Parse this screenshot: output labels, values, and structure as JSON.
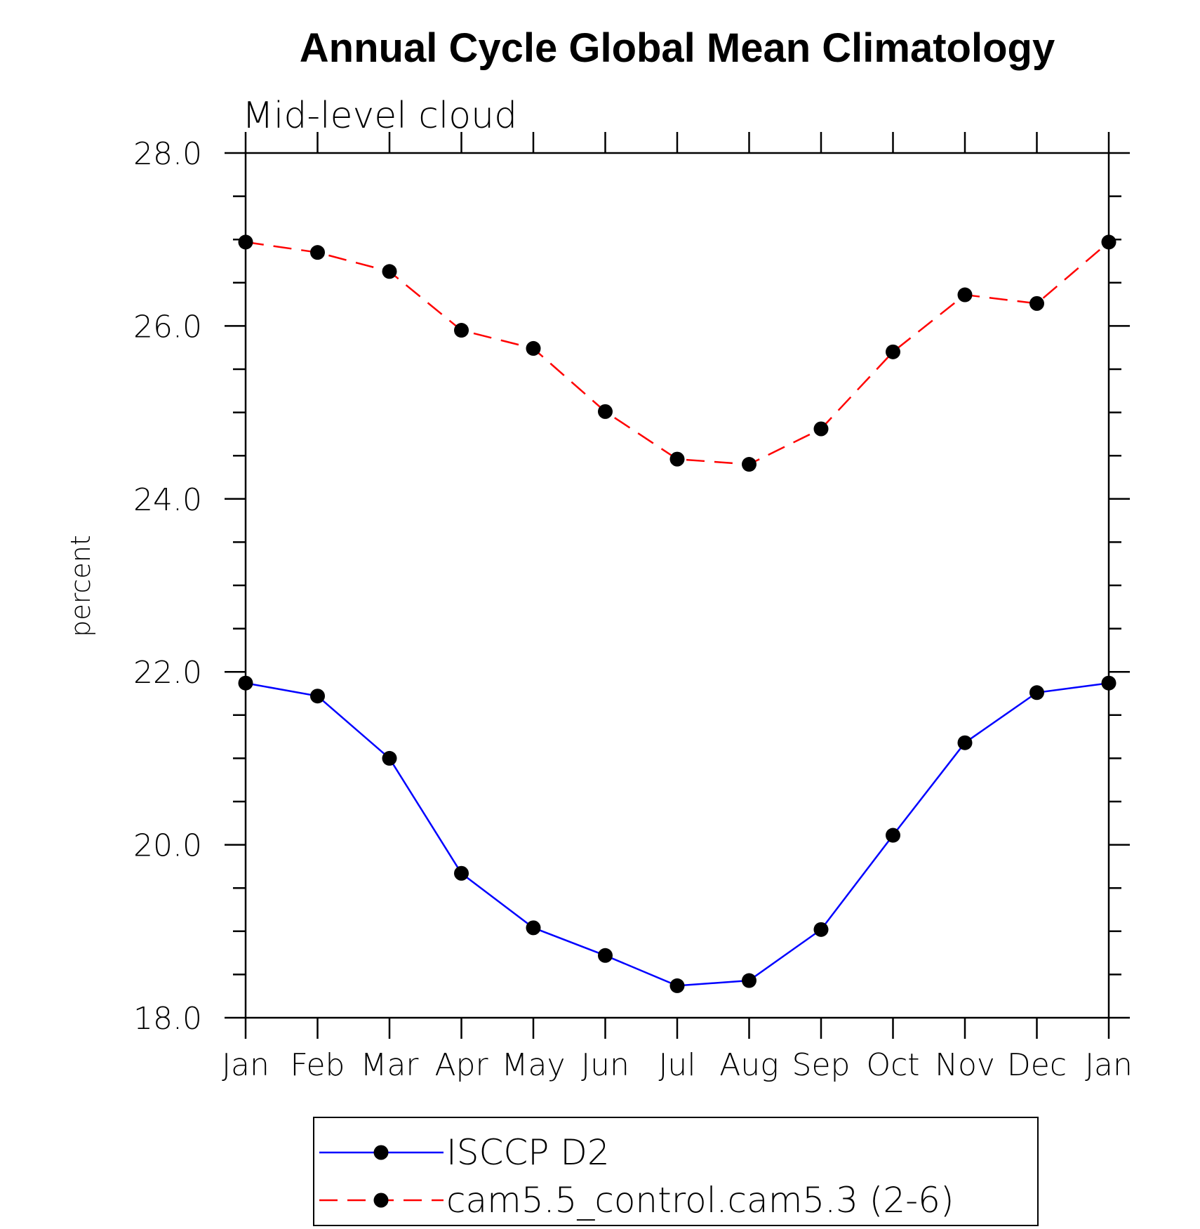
{
  "chart_data": {
    "type": "line",
    "title": "Annual Cycle Global Mean Climatology",
    "subtitle": "Mid-level cloud",
    "ylabel": "percent",
    "xlabel": "",
    "ylim": [
      18.0,
      28.0
    ],
    "yticks": [
      "18.0",
      "20.0",
      "22.0",
      "24.0",
      "26.0",
      "28.0"
    ],
    "categories": [
      "Jan",
      "Feb",
      "Mar",
      "Apr",
      "May",
      "Jun",
      "Jul",
      "Aug",
      "Sep",
      "Oct",
      "Nov",
      "Dec",
      "Jan"
    ],
    "series": [
      {
        "name": "ISCCP D2",
        "color": "#0000ff",
        "dash": "solid",
        "values": [
          21.87,
          21.72,
          21.0,
          19.67,
          19.04,
          18.72,
          18.37,
          18.43,
          19.02,
          20.11,
          21.18,
          21.76,
          21.87
        ]
      },
      {
        "name": "cam5.5_control.cam5.3 (2-6)",
        "color": "#ff0000",
        "dash": "dashed",
        "values": [
          26.97,
          26.85,
          26.63,
          25.95,
          25.74,
          25.01,
          24.46,
          24.4,
          24.81,
          25.7,
          26.36,
          26.26,
          26.97
        ]
      }
    ],
    "grid": false,
    "legend_position": "bottom"
  }
}
